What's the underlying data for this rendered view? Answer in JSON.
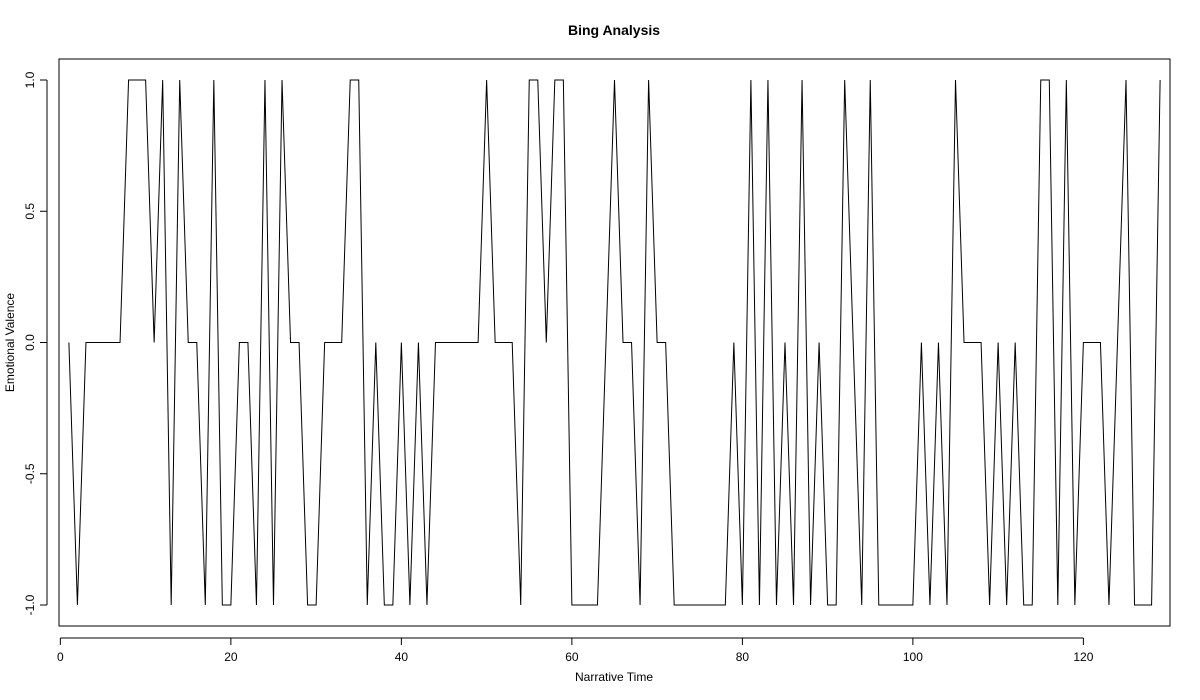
{
  "chart_data": {
    "type": "line",
    "title": "Bing Analysis",
    "xlabel": "Narrative Time",
    "ylabel": "Emotional Valence",
    "xlim": [
      -0.16,
      130.16
    ],
    "ylim": [
      -1.08,
      1.08
    ],
    "x_ticks": [
      0,
      20,
      40,
      60,
      80,
      100,
      120
    ],
    "x_tick_labels": [
      "0",
      "20",
      "40",
      "60",
      "80",
      "100",
      "120"
    ],
    "y_ticks": [
      -1.0,
      -0.5,
      0.0,
      0.5,
      1.0
    ],
    "y_tick_labels": [
      "-1.0",
      "-0.5",
      "0.0",
      "0.5",
      "1.0"
    ],
    "grid": false,
    "line_color": "#000000",
    "x_start": 1,
    "series": [
      {
        "values": [
          0,
          -1,
          0,
          0,
          0,
          0,
          0,
          1,
          1,
          1,
          0,
          1,
          -1,
          1,
          0,
          0,
          -1,
          1,
          -1,
          -1,
          0,
          0,
          -1,
          1,
          -1,
          1,
          0,
          0,
          -1,
          -1,
          0,
          0,
          0,
          1,
          1,
          -1,
          0,
          -1,
          -1,
          0,
          -1,
          0,
          -1,
          0,
          0,
          0,
          0,
          0,
          0,
          1,
          0,
          0,
          0,
          -1,
          1,
          1,
          0,
          1,
          1,
          -1,
          -1,
          -1,
          -1,
          0,
          1,
          0,
          0,
          -1,
          1,
          0,
          0,
          -1,
          -1,
          -1,
          -1,
          -1,
          -1,
          -1,
          0,
          -1,
          1,
          -1,
          1,
          -1,
          0,
          -1,
          1,
          -1,
          0,
          -1,
          -1,
          1,
          0,
          -1,
          1,
          -1,
          -1,
          -1,
          -1,
          -1,
          0,
          -1,
          0,
          -1,
          1,
          0,
          0,
          0,
          -1,
          0,
          -1,
          0,
          -1,
          -1,
          1,
          1,
          -1,
          1,
          -1,
          0,
          0,
          0,
          -1,
          0,
          1,
          -1,
          -1,
          -1,
          1
        ]
      }
    ]
  }
}
